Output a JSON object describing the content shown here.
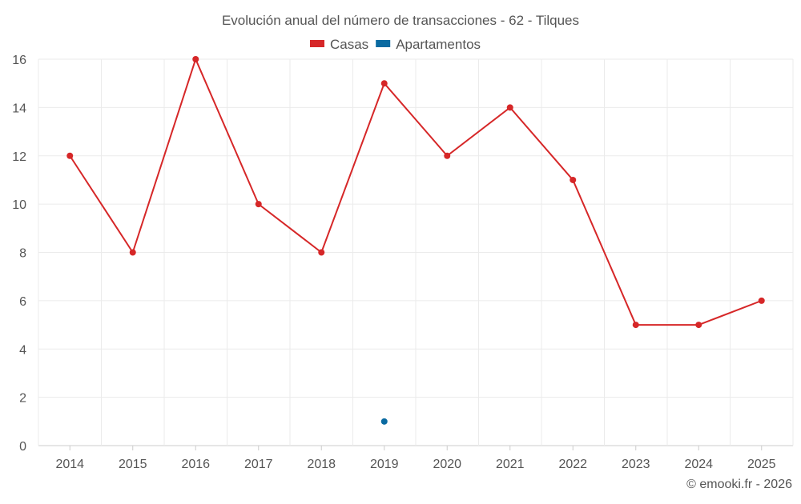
{
  "chart_data": {
    "type": "line",
    "title": "Evolución anual del número de transacciones - 62 - Tilques",
    "categories": [
      "2014",
      "2015",
      "2016",
      "2017",
      "2018",
      "2019",
      "2020",
      "2021",
      "2022",
      "2023",
      "2024",
      "2025"
    ],
    "series": [
      {
        "name": "Casas",
        "color": "#d62728",
        "values": [
          12,
          8,
          16,
          10,
          8,
          15,
          12,
          14,
          11,
          5,
          5,
          6
        ]
      },
      {
        "name": "Apartamentos",
        "color": "#0a6aa1",
        "values": [
          null,
          null,
          null,
          null,
          null,
          1,
          null,
          null,
          null,
          null,
          null,
          null
        ]
      }
    ],
    "yticks": [
      0,
      2,
      4,
      6,
      8,
      10,
      12,
      14,
      16
    ],
    "ylim": [
      0,
      16
    ],
    "xlabel": "",
    "ylabel": "",
    "grid": true,
    "legend": "top-center",
    "credit": "© emooki.fr - 2026"
  }
}
